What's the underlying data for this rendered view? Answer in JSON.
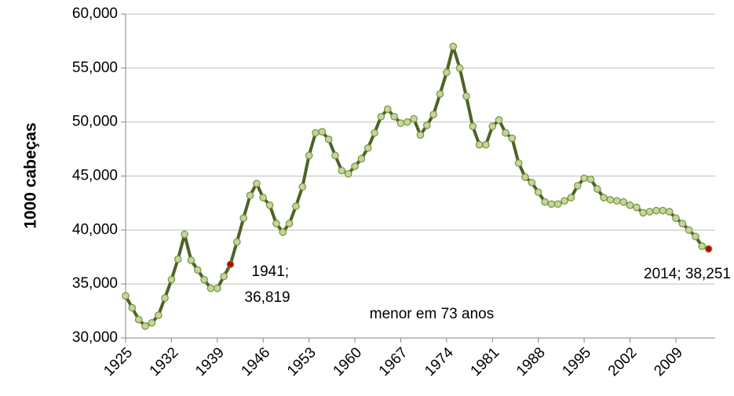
{
  "chart_data": {
    "type": "line",
    "y_label": "1000 cabeças",
    "x": [
      1925,
      1926,
      1927,
      1928,
      1929,
      1930,
      1931,
      1932,
      1933,
      1934,
      1935,
      1936,
      1937,
      1938,
      1939,
      1940,
      1941,
      1942,
      1943,
      1944,
      1945,
      1946,
      1947,
      1948,
      1949,
      1950,
      1951,
      1952,
      1953,
      1954,
      1955,
      1956,
      1957,
      1958,
      1959,
      1960,
      1961,
      1962,
      1963,
      1964,
      1965,
      1966,
      1967,
      1968,
      1969,
      1970,
      1971,
      1972,
      1973,
      1974,
      1975,
      1976,
      1977,
      1978,
      1979,
      1980,
      1981,
      1982,
      1983,
      1984,
      1985,
      1986,
      1987,
      1988,
      1989,
      1990,
      1991,
      1992,
      1993,
      1994,
      1995,
      1996,
      1997,
      1998,
      1999,
      2000,
      2001,
      2002,
      2003,
      2004,
      2005,
      2006,
      2007,
      2008,
      2009,
      2010,
      2011,
      2012,
      2013,
      2014
    ],
    "values": [
      33900,
      32800,
      31700,
      31100,
      31400,
      32100,
      33700,
      35400,
      37300,
      39600,
      37200,
      36300,
      35400,
      34600,
      34600,
      35700,
      36819,
      38900,
      41100,
      43200,
      44300,
      43000,
      42300,
      40600,
      39800,
      40600,
      42200,
      44000,
      46900,
      49000,
      49100,
      48400,
      46900,
      45500,
      45200,
      45900,
      46600,
      47600,
      49000,
      50500,
      51200,
      50500,
      49900,
      50000,
      50300,
      48800,
      49700,
      50700,
      52600,
      54600,
      57000,
      55000,
      52400,
      49600,
      47900,
      47900,
      49600,
      50200,
      49000,
      48500,
      46200,
      44900,
      44400,
      43500,
      42600,
      42400,
      42400,
      42700,
      43000,
      44100,
      44800,
      44700,
      43800,
      43000,
      42800,
      42700,
      42600,
      42300,
      42100,
      41600,
      41700,
      41800,
      41800,
      41700,
      41100,
      40600,
      40000,
      39400,
      38500,
      38251
    ],
    "color": "#4f6228",
    "marker_color": "#c3d69b",
    "highlight_color": "#c00000",
    "xlim": [
      1925,
      2015
    ],
    "xticks": [
      1925,
      1932,
      1939,
      1946,
      1953,
      1960,
      1967,
      1974,
      1981,
      1988,
      1995,
      2002,
      2009
    ],
    "ylim": [
      30000,
      60000
    ],
    "yticks": [
      {
        "value": 30000,
        "label": "30,000"
      },
      {
        "value": 35000,
        "label": "35,000"
      },
      {
        "value": 40000,
        "label": "40,000"
      },
      {
        "value": 45000,
        "label": "45,000"
      },
      {
        "value": 50000,
        "label": "50,000"
      },
      {
        "value": 55000,
        "label": "55,000"
      },
      {
        "value": 60000,
        "label": "60,000"
      }
    ],
    "grid": true,
    "annotations": [
      {
        "x": 1941,
        "lines": [
          "1941;",
          "36,819"
        ]
      },
      {
        "x": 2014,
        "lines": [
          "2014; 38,251"
        ]
      },
      {
        "lines": [
          "menor em 73 anos"
        ]
      }
    ]
  }
}
